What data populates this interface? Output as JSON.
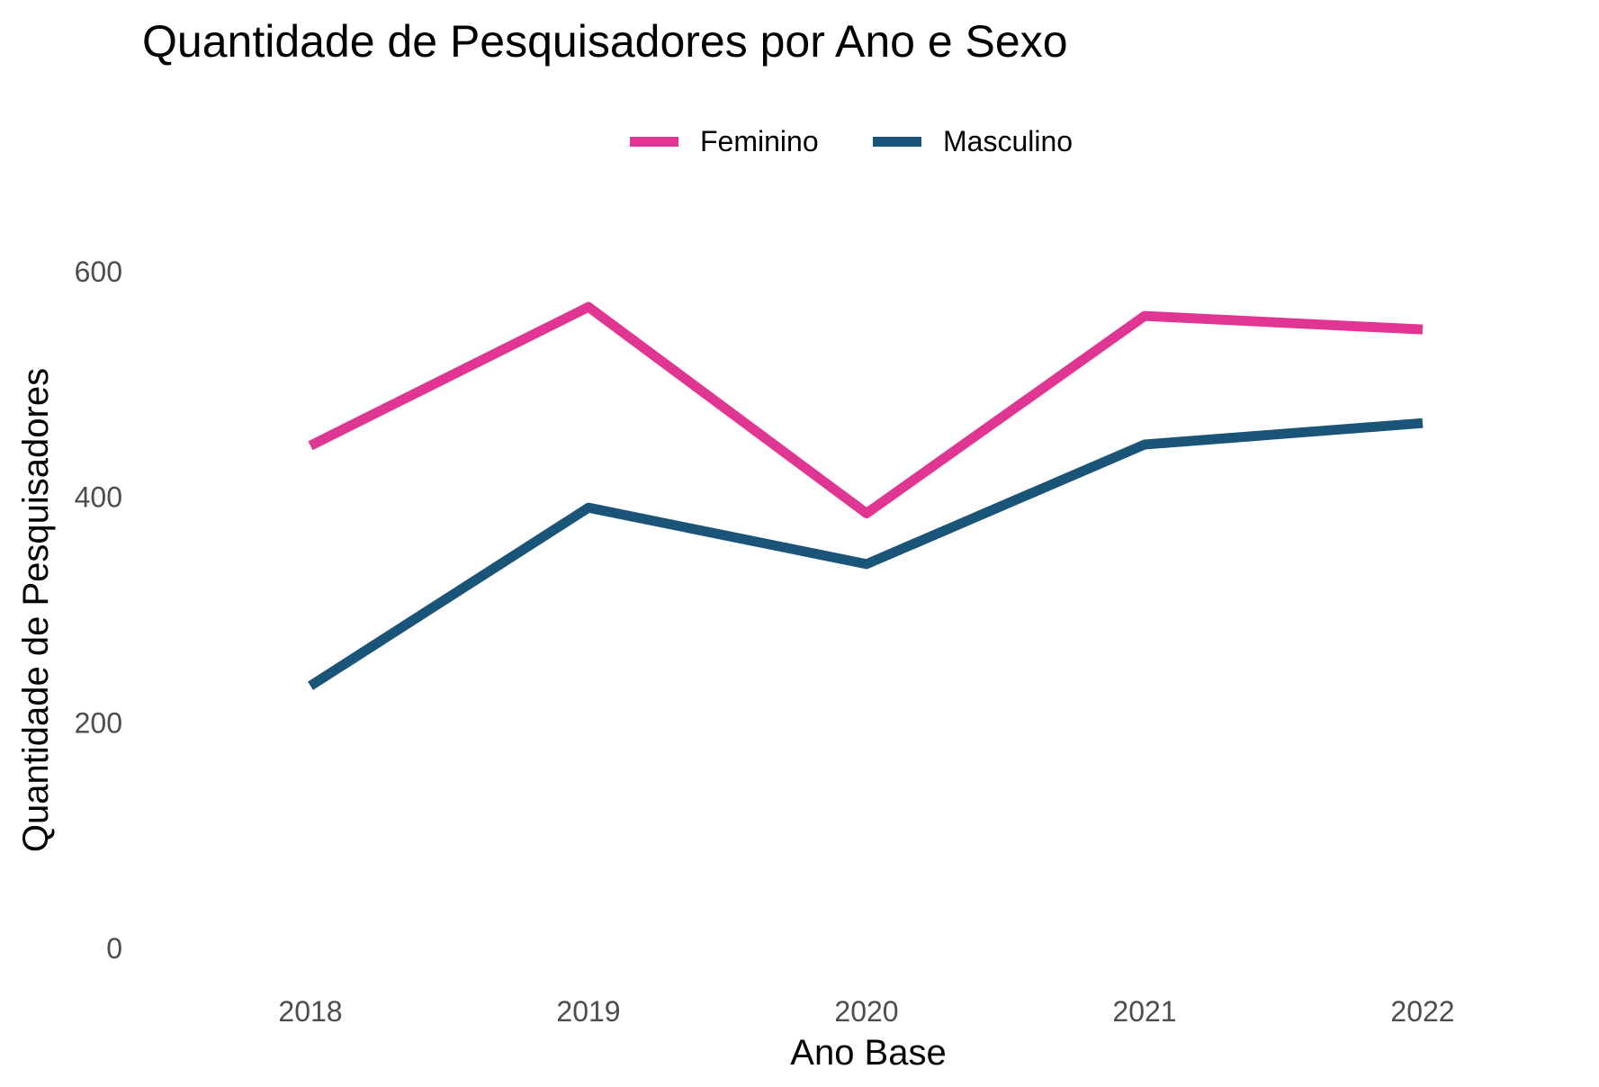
{
  "chart_data": {
    "type": "line",
    "title": "Quantidade de Pesquisadores por Ano e Sexo",
    "xlabel": "Ano Base",
    "ylabel": "Quantidade de Pesquisadores",
    "categories": [
      "2018",
      "2019",
      "2020",
      "2021",
      "2022"
    ],
    "series": [
      {
        "name": "Feminino",
        "color": "#E03593",
        "values": [
          445,
          568,
          385,
          560,
          548
        ]
      },
      {
        "name": "Masculino",
        "color": "#1B5479",
        "values": [
          232,
          390,
          340,
          446,
          465
        ]
      }
    ],
    "yticks": [
      0,
      200,
      400,
      600
    ],
    "ylim": [
      0,
      600
    ],
    "grid": false,
    "legend_position": "top"
  }
}
